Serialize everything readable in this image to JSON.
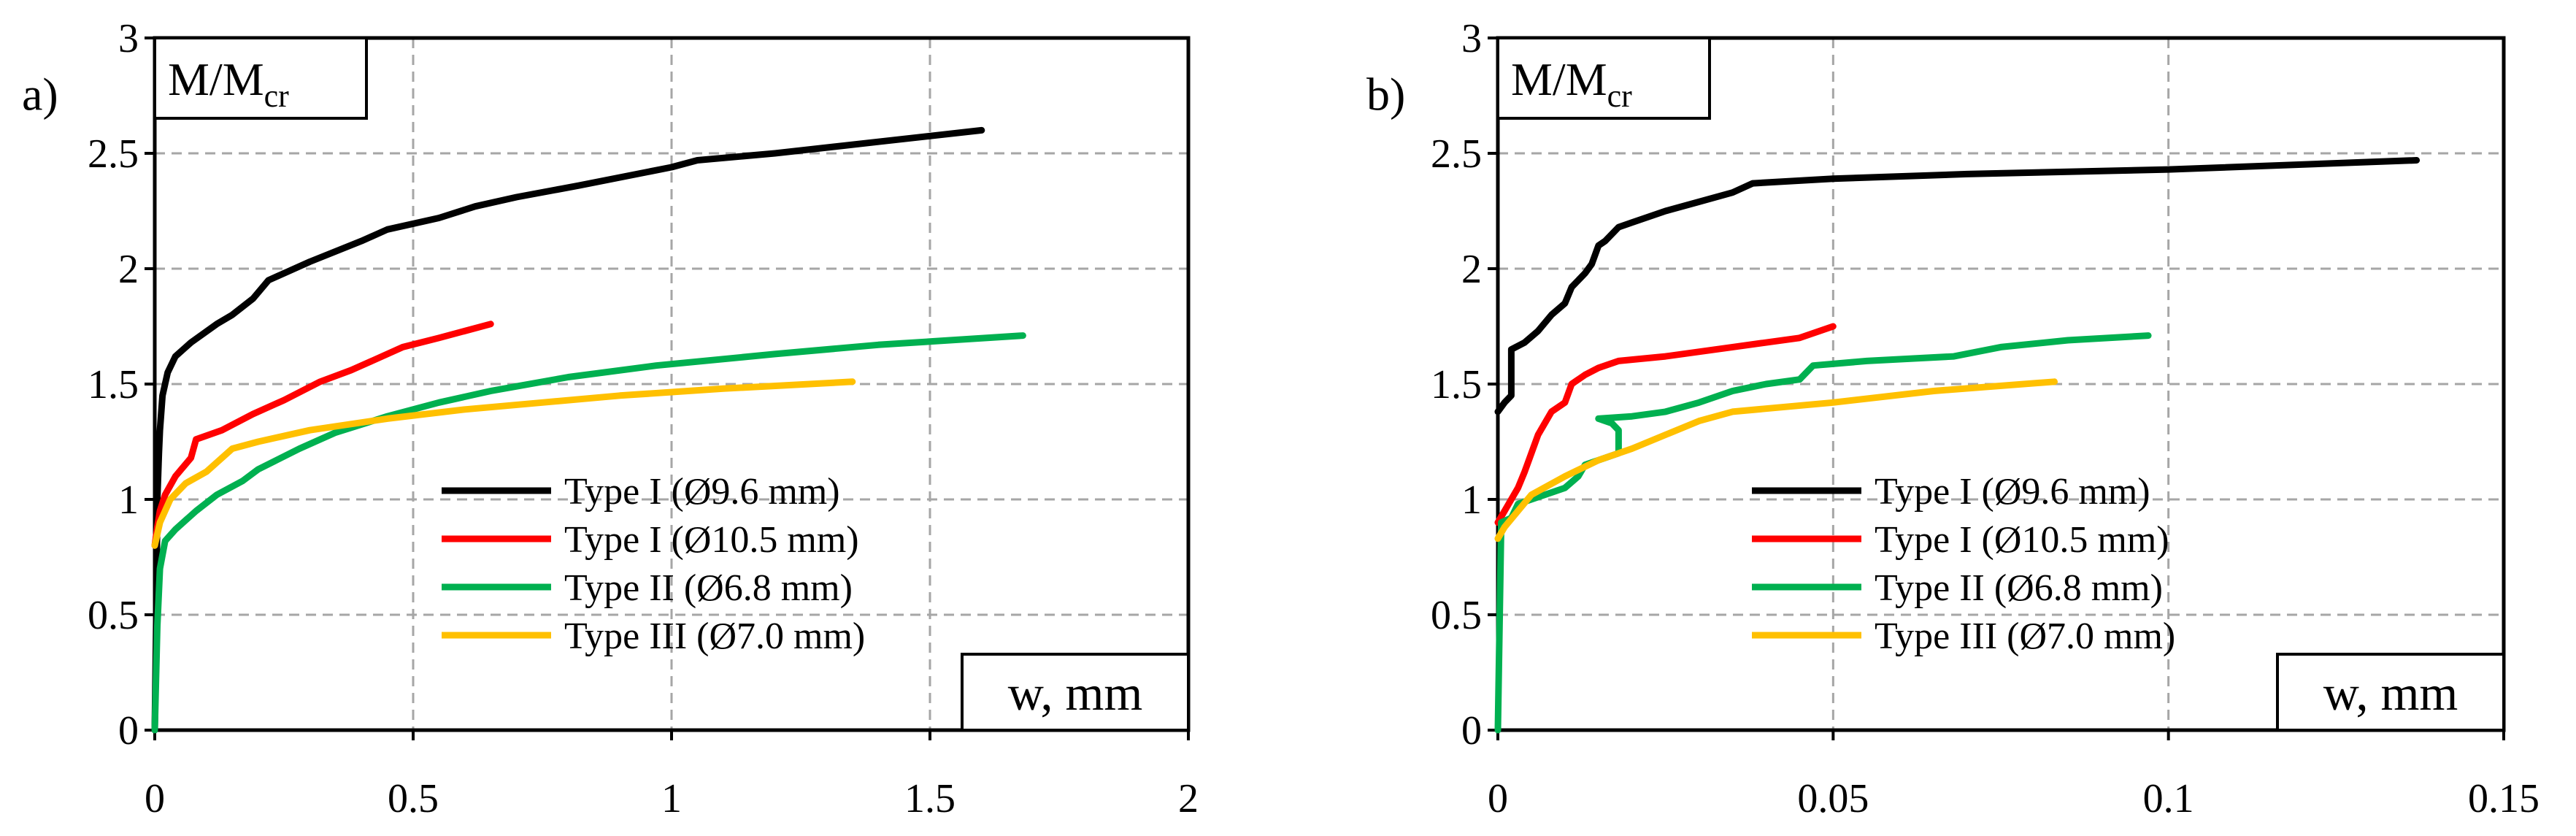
{
  "chart_data": [
    {
      "type": "line",
      "panel_label": "a)",
      "ylabel": "M/M",
      "ylabel_sub": "cr",
      "xlabel": "w, mm",
      "xlim": [
        0,
        2
      ],
      "ylim": [
        0,
        3
      ],
      "x_ticks": [
        0,
        0.5,
        1,
        1.5,
        2
      ],
      "x_tick_labels": [
        "0",
        "0.5",
        "1",
        "1.5",
        "2"
      ],
      "y_ticks": [
        0,
        0.5,
        1,
        1.5,
        2,
        2.5,
        3
      ],
      "y_tick_labels": [
        "0",
        "0.5",
        "1",
        "1.5",
        "2",
        "2.5",
        "3"
      ],
      "grid": true,
      "legend_position": "lower-right",
      "series": [
        {
          "name": "Type I (Ø9.6 mm)",
          "color": "#000000",
          "points": [
            [
              0,
              0
            ],
            [
              0.003,
              0.5
            ],
            [
              0.005,
              1.0
            ],
            [
              0.008,
              1.2
            ],
            [
              0.01,
              1.3
            ],
            [
              0.015,
              1.45
            ],
            [
              0.025,
              1.55
            ],
            [
              0.04,
              1.62
            ],
            [
              0.07,
              1.68
            ],
            [
              0.12,
              1.76
            ],
            [
              0.15,
              1.8
            ],
            [
              0.19,
              1.87
            ],
            [
              0.22,
              1.95
            ],
            [
              0.3,
              2.03
            ],
            [
              0.4,
              2.12
            ],
            [
              0.45,
              2.17
            ],
            [
              0.55,
              2.22
            ],
            [
              0.62,
              2.27
            ],
            [
              0.7,
              2.31
            ],
            [
              0.82,
              2.36
            ],
            [
              1.0,
              2.44
            ],
            [
              1.05,
              2.47
            ],
            [
              1.2,
              2.5
            ],
            [
              1.4,
              2.55
            ],
            [
              1.6,
              2.6
            ]
          ]
        },
        {
          "name": "Type I (Ø10.5 mm)",
          "color": "#ff0000",
          "points": [
            [
              0,
              0.8
            ],
            [
              0.005,
              0.88
            ],
            [
              0.01,
              0.95
            ],
            [
              0.02,
              1.02
            ],
            [
              0.04,
              1.1
            ],
            [
              0.07,
              1.18
            ],
            [
              0.08,
              1.26
            ],
            [
              0.13,
              1.3
            ],
            [
              0.19,
              1.37
            ],
            [
              0.25,
              1.43
            ],
            [
              0.32,
              1.51
            ],
            [
              0.38,
              1.56
            ],
            [
              0.42,
              1.6
            ],
            [
              0.48,
              1.66
            ],
            [
              0.55,
              1.7
            ],
            [
              0.65,
              1.76
            ]
          ]
        },
        {
          "name": "Type II (Ø6.8 mm)",
          "color": "#00b050",
          "points": [
            [
              0,
              0
            ],
            [
              0.005,
              0.45
            ],
            [
              0.01,
              0.7
            ],
            [
              0.02,
              0.82
            ],
            [
              0.04,
              0.87
            ],
            [
              0.08,
              0.95
            ],
            [
              0.12,
              1.02
            ],
            [
              0.17,
              1.08
            ],
            [
              0.2,
              1.13
            ],
            [
              0.28,
              1.22
            ],
            [
              0.35,
              1.29
            ],
            [
              0.45,
              1.36
            ],
            [
              0.55,
              1.42
            ],
            [
              0.65,
              1.47
            ],
            [
              0.7,
              1.49
            ],
            [
              0.8,
              1.53
            ],
            [
              0.97,
              1.58
            ],
            [
              1.2,
              1.63
            ],
            [
              1.4,
              1.67
            ],
            [
              1.68,
              1.71
            ]
          ]
        },
        {
          "name": "Type III (Ø7.0 mm)",
          "color": "#ffc000",
          "points": [
            [
              0,
              0.8
            ],
            [
              0.01,
              0.9
            ],
            [
              0.03,
              1.0
            ],
            [
              0.06,
              1.07
            ],
            [
              0.1,
              1.12
            ],
            [
              0.15,
              1.22
            ],
            [
              0.2,
              1.25
            ],
            [
              0.3,
              1.3
            ],
            [
              0.45,
              1.35
            ],
            [
              0.6,
              1.39
            ],
            [
              0.75,
              1.42
            ],
            [
              0.9,
              1.45
            ],
            [
              1.1,
              1.48
            ],
            [
              1.35,
              1.51
            ]
          ]
        }
      ]
    },
    {
      "type": "line",
      "panel_label": "b)",
      "ylabel": "M/M",
      "ylabel_sub": "cr",
      "xlabel": "w, mm",
      "xlim": [
        0,
        0.15
      ],
      "ylim": [
        0,
        3
      ],
      "x_ticks": [
        0,
        0.05,
        0.1,
        0.15
      ],
      "x_tick_labels": [
        "0",
        "0.05",
        "0.1",
        "0.15"
      ],
      "y_ticks": [
        0,
        0.5,
        1,
        1.5,
        2,
        2.5,
        3
      ],
      "y_tick_labels": [
        "0",
        "0.5",
        "1",
        "1.5",
        "2",
        "2.5",
        "3"
      ],
      "grid": true,
      "legend_position": "lower-right",
      "series": [
        {
          "name": "Type I (Ø9.6 mm)",
          "color": "#000000",
          "points": [
            [
              0,
              1.38
            ],
            [
              0.001,
              1.42
            ],
            [
              0.002,
              1.45
            ],
            [
              0.002,
              1.65
            ],
            [
              0.004,
              1.68
            ],
            [
              0.006,
              1.73
            ],
            [
              0.008,
              1.8
            ],
            [
              0.01,
              1.85
            ],
            [
              0.011,
              1.92
            ],
            [
              0.013,
              1.98
            ],
            [
              0.014,
              2.02
            ],
            [
              0.015,
              2.1
            ],
            [
              0.016,
              2.12
            ],
            [
              0.018,
              2.18
            ],
            [
              0.02,
              2.2
            ],
            [
              0.025,
              2.25
            ],
            [
              0.03,
              2.29
            ],
            [
              0.035,
              2.33
            ],
            [
              0.038,
              2.37
            ],
            [
              0.05,
              2.39
            ],
            [
              0.07,
              2.41
            ],
            [
              0.1,
              2.43
            ],
            [
              0.137,
              2.47
            ]
          ]
        },
        {
          "name": "Type I (Ø10.5 mm)",
          "color": "#ff0000",
          "points": [
            [
              0,
              0.9
            ],
            [
              0.001,
              0.95
            ],
            [
              0.002,
              1.0
            ],
            [
              0.003,
              1.05
            ],
            [
              0.004,
              1.12
            ],
            [
              0.005,
              1.2
            ],
            [
              0.006,
              1.28
            ],
            [
              0.007,
              1.33
            ],
            [
              0.008,
              1.38
            ],
            [
              0.01,
              1.42
            ],
            [
              0.011,
              1.5
            ],
            [
              0.013,
              1.54
            ],
            [
              0.015,
              1.57
            ],
            [
              0.018,
              1.6
            ],
            [
              0.025,
              1.62
            ],
            [
              0.035,
              1.66
            ],
            [
              0.045,
              1.7
            ],
            [
              0.05,
              1.75
            ]
          ]
        },
        {
          "name": "Type II (Ø6.8 mm)",
          "color": "#00b050",
          "points": [
            [
              0,
              0
            ],
            [
              0.0005,
              0.9
            ],
            [
              0.002,
              0.92
            ],
            [
              0.003,
              0.98
            ],
            [
              0.005,
              1.0
            ],
            [
              0.01,
              1.05
            ],
            [
              0.012,
              1.1
            ],
            [
              0.013,
              1.15
            ],
            [
              0.016,
              1.18
            ],
            [
              0.018,
              1.2
            ],
            [
              0.018,
              1.3
            ],
            [
              0.017,
              1.33
            ],
            [
              0.015,
              1.35
            ],
            [
              0.02,
              1.36
            ],
            [
              0.025,
              1.38
            ],
            [
              0.03,
              1.42
            ],
            [
              0.035,
              1.47
            ],
            [
              0.04,
              1.5
            ],
            [
              0.045,
              1.52
            ],
            [
              0.047,
              1.58
            ],
            [
              0.055,
              1.6
            ],
            [
              0.068,
              1.62
            ],
            [
              0.075,
              1.66
            ],
            [
              0.085,
              1.69
            ],
            [
              0.097,
              1.71
            ]
          ]
        },
        {
          "name": "Type III (Ø7.0 mm)",
          "color": "#ffc000",
          "points": [
            [
              0,
              0.83
            ],
            [
              0.001,
              0.88
            ],
            [
              0.003,
              0.95
            ],
            [
              0.005,
              1.02
            ],
            [
              0.01,
              1.1
            ],
            [
              0.015,
              1.17
            ],
            [
              0.02,
              1.22
            ],
            [
              0.025,
              1.28
            ],
            [
              0.03,
              1.34
            ],
            [
              0.035,
              1.38
            ],
            [
              0.05,
              1.42
            ],
            [
              0.065,
              1.47
            ],
            [
              0.083,
              1.51
            ]
          ]
        }
      ]
    }
  ]
}
